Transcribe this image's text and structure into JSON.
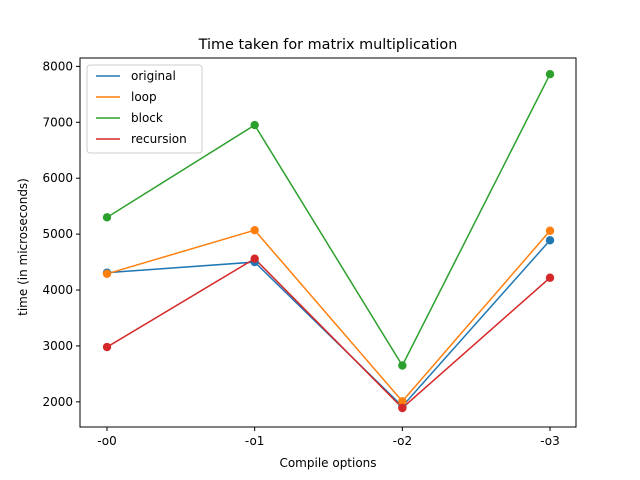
{
  "chart_data": {
    "type": "line",
    "title": "Time taken for matrix multiplication",
    "xlabel": "Compile options",
    "ylabel": "time (in microseconds)",
    "categories": [
      "-o0",
      "-o1",
      "-o2",
      "-o3"
    ],
    "ylim": [
      1550,
      8150
    ],
    "yticks": [
      2000,
      3000,
      4000,
      5000,
      6000,
      7000,
      8000
    ],
    "grid": false,
    "legend_position": "top-left",
    "markers": true,
    "series": [
      {
        "name": "original",
        "color": "#1f77b4",
        "values": [
          4310,
          4500,
          1920,
          4890
        ]
      },
      {
        "name": "loop",
        "color": "#ff7f0e",
        "values": [
          4290,
          5070,
          2010,
          5060
        ]
      },
      {
        "name": "block",
        "color": "#2ca02c",
        "values": [
          5300,
          6950,
          2650,
          7860
        ]
      },
      {
        "name": "recursion",
        "color": "#d62728",
        "values": [
          2980,
          4560,
          1890,
          4220
        ]
      }
    ]
  }
}
